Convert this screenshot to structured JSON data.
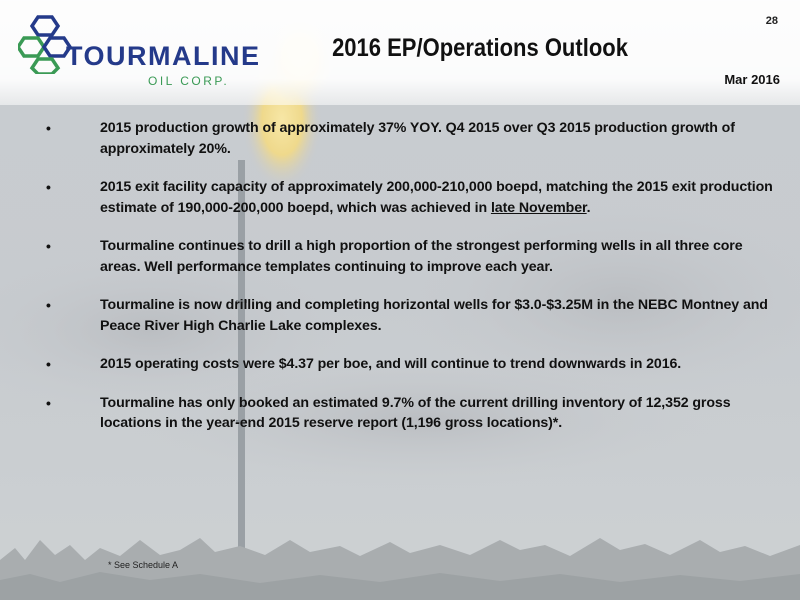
{
  "header": {
    "logo_word": "TOURMALINE",
    "logo_sub": "OIL CORP.",
    "title": "2016 EP/Operations Outlook",
    "page_number": "28",
    "date": "Mar 2016"
  },
  "bullets": [
    {
      "text": "2015 production growth of approximately 37% YOY.  Q4 2015 over Q3 2015 production growth of approximately 20%."
    },
    {
      "text_before": "2015 exit facility capacity of approximately 200,000-210,000 boepd, matching the 2015 exit production estimate of 190,000-200,000 boepd, which was achieved in ",
      "text_underlined": "late November",
      "text_after": "."
    },
    {
      "text": "Tourmaline continues to drill a high proportion of the strongest performing wells in all three core areas.  Well performance templates continuing to improve each year."
    },
    {
      "text": "Tourmaline is now drilling and completing horizontal wells for $3.0-$3.25M in the NEBC Montney and Peace River High Charlie Lake complexes."
    },
    {
      "text": "2015 operating costs were $4.37 per boe, and will continue to trend downwards in 2016."
    },
    {
      "text": "Tourmaline has only booked an estimated 9.7% of the current drilling inventory of 12,352 gross locations in the year-end 2015 reserve report (1,196 gross locations)*."
    }
  ],
  "bullet_symbol": "•",
  "footnote": "* See Schedule A",
  "colors": {
    "logo_blue": "#243a8a",
    "logo_green": "#3a9a55",
    "text": "#111111"
  }
}
